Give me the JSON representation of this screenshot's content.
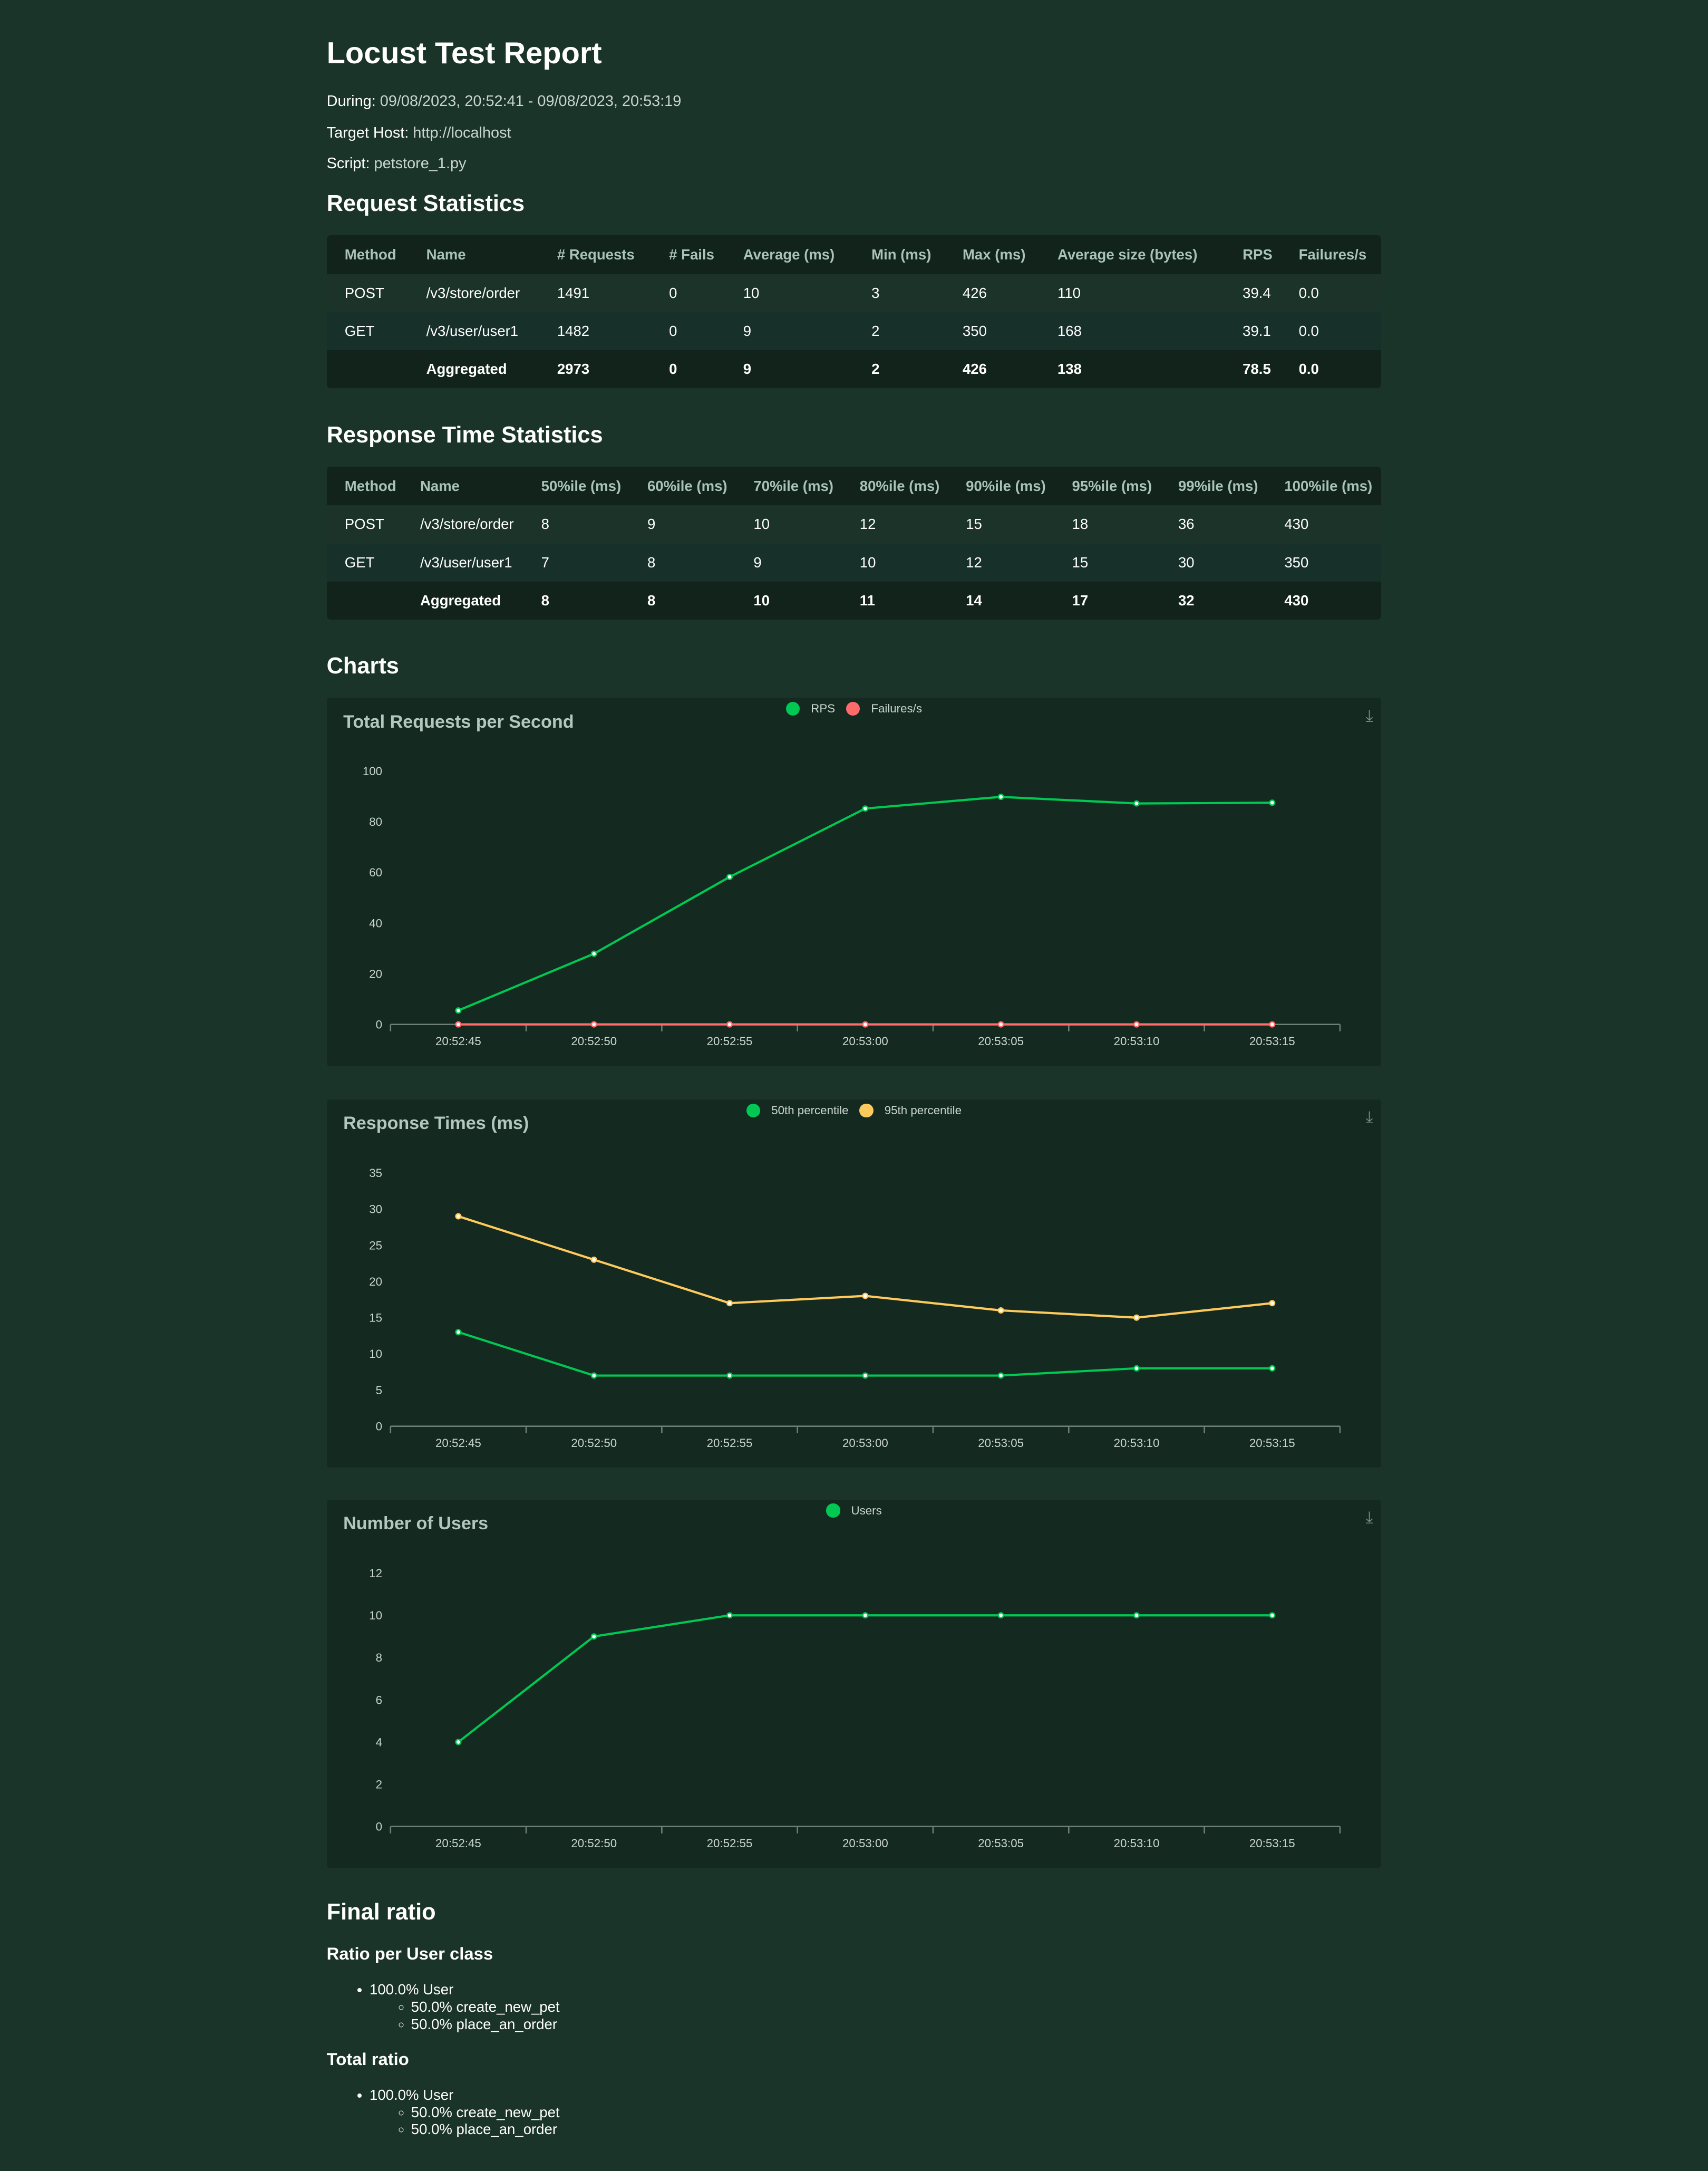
{
  "report": {
    "title": "Locust Test Report",
    "during_label": "During:",
    "during_value": "09/08/2023, 20:52:41 - 09/08/2023, 20:53:19",
    "host_label": "Target Host:",
    "host_value": "http://localhost",
    "script_label": "Script:",
    "script_value": "petstore_1.py"
  },
  "request_stats": {
    "heading": "Request Statistics",
    "columns": [
      "Method",
      "Name",
      "# Requests",
      "# Fails",
      "Average (ms)",
      "Min (ms)",
      "Max (ms)",
      "Average size (bytes)",
      "RPS",
      "Failures/s"
    ],
    "rows": [
      [
        "POST",
        "/v3/store/order",
        "1491",
        "0",
        "10",
        "3",
        "426",
        "110",
        "39.4",
        "0.0"
      ],
      [
        "GET",
        "/v3/user/user1",
        "1482",
        "0",
        "9",
        "2",
        "350",
        "168",
        "39.1",
        "0.0"
      ],
      [
        "",
        "Aggregated",
        "2973",
        "0",
        "9",
        "2",
        "426",
        "138",
        "78.5",
        "0.0"
      ]
    ]
  },
  "response_stats": {
    "heading": "Response Time Statistics",
    "columns": [
      "Method",
      "Name",
      "50%ile (ms)",
      "60%ile (ms)",
      "70%ile (ms)",
      "80%ile (ms)",
      "90%ile (ms)",
      "95%ile (ms)",
      "99%ile (ms)",
      "100%ile (ms)"
    ],
    "rows": [
      [
        "POST",
        "/v3/store/order",
        "8",
        "9",
        "10",
        "12",
        "15",
        "18",
        "36",
        "430"
      ],
      [
        "GET",
        "/v3/user/user1",
        "7",
        "8",
        "9",
        "10",
        "12",
        "15",
        "30",
        "350"
      ],
      [
        "",
        "Aggregated",
        "8",
        "8",
        "10",
        "11",
        "14",
        "17",
        "32",
        "430"
      ]
    ]
  },
  "charts_heading": "Charts",
  "chart_data": [
    {
      "type": "line",
      "title": "Total Requests per Second",
      "x": [
        "20:52:45",
        "20:52:50",
        "20:52:55",
        "20:53:00",
        "20:53:05",
        "20:53:10",
        "20:53:15"
      ],
      "yticks": [
        "0",
        "20",
        "40",
        "60",
        "80",
        "100"
      ],
      "ylim": [
        0,
        100
      ],
      "series": [
        {
          "name": "RPS",
          "color": "#00c853",
          "values": [
            5.5,
            27.9,
            58.2,
            85.2,
            89.8,
            87.2,
            87.5
          ]
        },
        {
          "name": "Failures/s",
          "color": "#ff6b6b",
          "values": [
            0,
            0,
            0,
            0,
            0,
            0,
            0
          ]
        }
      ],
      "legend": "top-center",
      "grid": false
    },
    {
      "type": "line",
      "title": "Response Times (ms)",
      "x": [
        "20:52:45",
        "20:52:50",
        "20:52:55",
        "20:53:00",
        "20:53:05",
        "20:53:10",
        "20:53:15"
      ],
      "yticks": [
        "0",
        "5",
        "10",
        "15",
        "20",
        "25",
        "30",
        "35"
      ],
      "ylim": [
        0,
        35
      ],
      "series": [
        {
          "name": "50th percentile",
          "color": "#00c853",
          "values": [
            13,
            7,
            7,
            7,
            7,
            8,
            8
          ]
        },
        {
          "name": "95th percentile",
          "color": "#ffca5c",
          "values": [
            29,
            23,
            17,
            18,
            16,
            15,
            17
          ]
        }
      ],
      "legend": "top-center",
      "grid": false
    },
    {
      "type": "line",
      "title": "Number of Users",
      "x": [
        "20:52:45",
        "20:52:50",
        "20:52:55",
        "20:53:00",
        "20:53:05",
        "20:53:10",
        "20:53:15"
      ],
      "yticks": [
        "0",
        "2",
        "4",
        "6",
        "8",
        "10",
        "12"
      ],
      "ylim": [
        0,
        12
      ],
      "series": [
        {
          "name": "Users",
          "color": "#00c853",
          "values": [
            4,
            9,
            10,
            10,
            10,
            10,
            10
          ]
        }
      ],
      "legend": "top-center",
      "grid": false
    }
  ],
  "final_ratio": {
    "heading": "Final ratio",
    "per_class_heading": "Ratio per User class",
    "total_heading": "Total ratio",
    "per_class": {
      "user": "100.0% User",
      "tasks": [
        "50.0% create_new_pet",
        "50.0% place_an_order"
      ]
    },
    "total": {
      "user": "100.0% User",
      "tasks": [
        "50.0% create_new_pet",
        "50.0% place_an_order"
      ]
    }
  }
}
